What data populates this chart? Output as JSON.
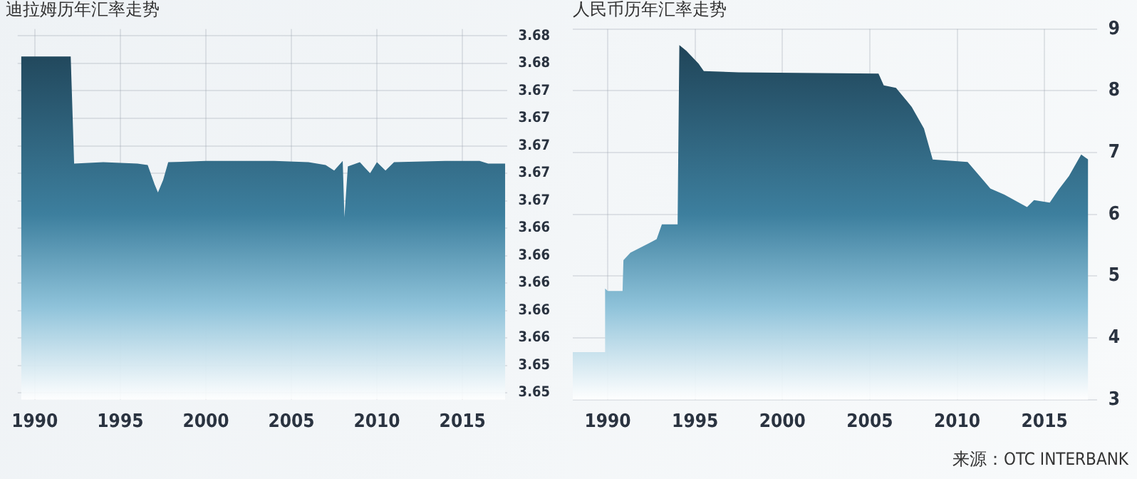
{
  "chart_data": [
    {
      "type": "area",
      "title": "迪拉姆历年汇率走势",
      "x": [
        1989.2,
        1992.1,
        1992.3,
        1994,
        1996,
        1996.6,
        1997,
        1997.2,
        1997.5,
        1997.8,
        2000,
        2004,
        2006,
        2007,
        2007.5,
        2008,
        2008.1,
        2008.3,
        2009,
        2009.6,
        2010,
        2010.5,
        2011,
        2014,
        2016,
        2016.5,
        2017.5
      ],
      "series": [
        {
          "color": "#3d7f9e",
          "values": [
            3.6755,
            3.6755,
            3.6677,
            3.6678,
            3.6677,
            3.6676,
            3.6662,
            3.6656,
            3.6665,
            3.6678,
            3.6679,
            3.6679,
            3.6678,
            3.6676,
            3.6672,
            3.6679,
            3.6638,
            3.6675,
            3.6678,
            3.667,
            3.6678,
            3.6672,
            3.6678,
            3.6679,
            3.6679,
            3.6677,
            3.6677
          ]
        }
      ],
      "xlim": [
        1989,
        2017.6
      ],
      "xticks": [
        1990,
        1995,
        2000,
        2005,
        2010,
        2015
      ],
      "ylim": [
        3.6505,
        3.6775
      ],
      "yticks": [
        {
          "value": 3.677,
          "label": "3.68"
        },
        {
          "value": 3.675,
          "label": "3.68"
        },
        {
          "value": 3.673,
          "label": "3.67"
        },
        {
          "value": 3.671,
          "label": "3.67"
        },
        {
          "value": 3.669,
          "label": "3.67"
        },
        {
          "value": 3.667,
          "label": "3.67"
        },
        {
          "value": 3.665,
          "label": "3.67"
        },
        {
          "value": 3.663,
          "label": "3.66"
        },
        {
          "value": 3.661,
          "label": "3.66"
        },
        {
          "value": 3.659,
          "label": "3.66"
        },
        {
          "value": 3.657,
          "label": "3.66"
        },
        {
          "value": 3.655,
          "label": "3.66"
        },
        {
          "value": 3.653,
          "label": "3.65"
        },
        {
          "value": 3.651,
          "label": "3.65"
        }
      ],
      "grid": true
    },
    {
      "type": "area",
      "title": "人民币历年汇率走势",
      "x": [
        1988,
        1989.8,
        1989.85,
        1990,
        1990.85,
        1990.9,
        1991.3,
        1992.4,
        1992.8,
        1993.1,
        1994,
        1994.1,
        1994.5,
        1995.2,
        1995.5,
        1997.5,
        2005.5,
        2005.8,
        2006.5,
        2007.4,
        2008.1,
        2008.6,
        2010.6,
        2011.9,
        2012.7,
        2014,
        2014.4,
        2015.3,
        2015.8,
        2016.4,
        2017.1,
        2017.5
      ],
      "series": [
        {
          "color": "#3d7f9e",
          "values": [
            3.77,
            3.77,
            4.8,
            4.76,
            4.76,
            5.26,
            5.38,
            5.54,
            5.6,
            5.84,
            5.84,
            8.74,
            8.65,
            8.44,
            8.32,
            8.3,
            8.28,
            8.09,
            8.05,
            7.74,
            7.39,
            6.89,
            6.85,
            6.42,
            6.32,
            6.12,
            6.23,
            6.19,
            6.4,
            6.62,
            6.97,
            6.89
          ]
        }
      ],
      "xlim": [
        1988,
        2018
      ],
      "xticks": [
        1990,
        1995,
        2000,
        2005,
        2010,
        2015
      ],
      "ylim": [
        3,
        9
      ],
      "yticks": [
        3,
        4,
        5,
        6,
        7,
        8,
        9
      ],
      "grid": true,
      "annotations": [
        "来源：OTC INTERBANK"
      ]
    }
  ]
}
